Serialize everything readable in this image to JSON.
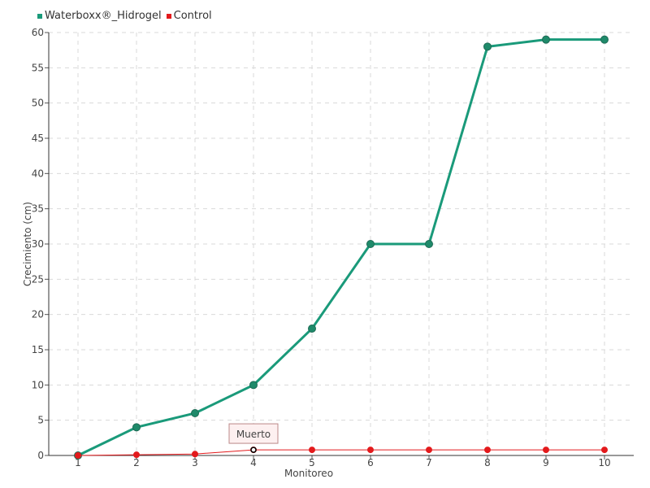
{
  "chart_data": {
    "type": "line",
    "xlabel": "Monitoreo",
    "ylabel": "Crecimiento (cm)",
    "categories": [
      "1",
      "2",
      "3",
      "4",
      "5",
      "6",
      "7",
      "8",
      "9",
      "10"
    ],
    "ylim": [
      0,
      60
    ],
    "yticks": [
      0,
      5,
      10,
      15,
      20,
      25,
      30,
      35,
      40,
      45,
      50,
      55,
      60
    ],
    "grid": true,
    "legend_position": "top-left",
    "series": [
      {
        "name": "Waterboxx®_Hidrogel",
        "color": "#1a9a7a",
        "marker_color": "#1f8a6a",
        "values": [
          0,
          4,
          6,
          10,
          18,
          30,
          30,
          58,
          59,
          59
        ]
      },
      {
        "name": "Control",
        "color": "#e31a1c",
        "marker_color": "#e31a1c",
        "values": [
          0,
          0.1,
          0.2,
          0.8,
          0.8,
          0.8,
          0.8,
          0.8,
          0.8,
          0.8
        ]
      }
    ],
    "annotations": [
      {
        "text": "Muerto",
        "series": "Control",
        "category": "4",
        "value": 0.8
      }
    ]
  }
}
